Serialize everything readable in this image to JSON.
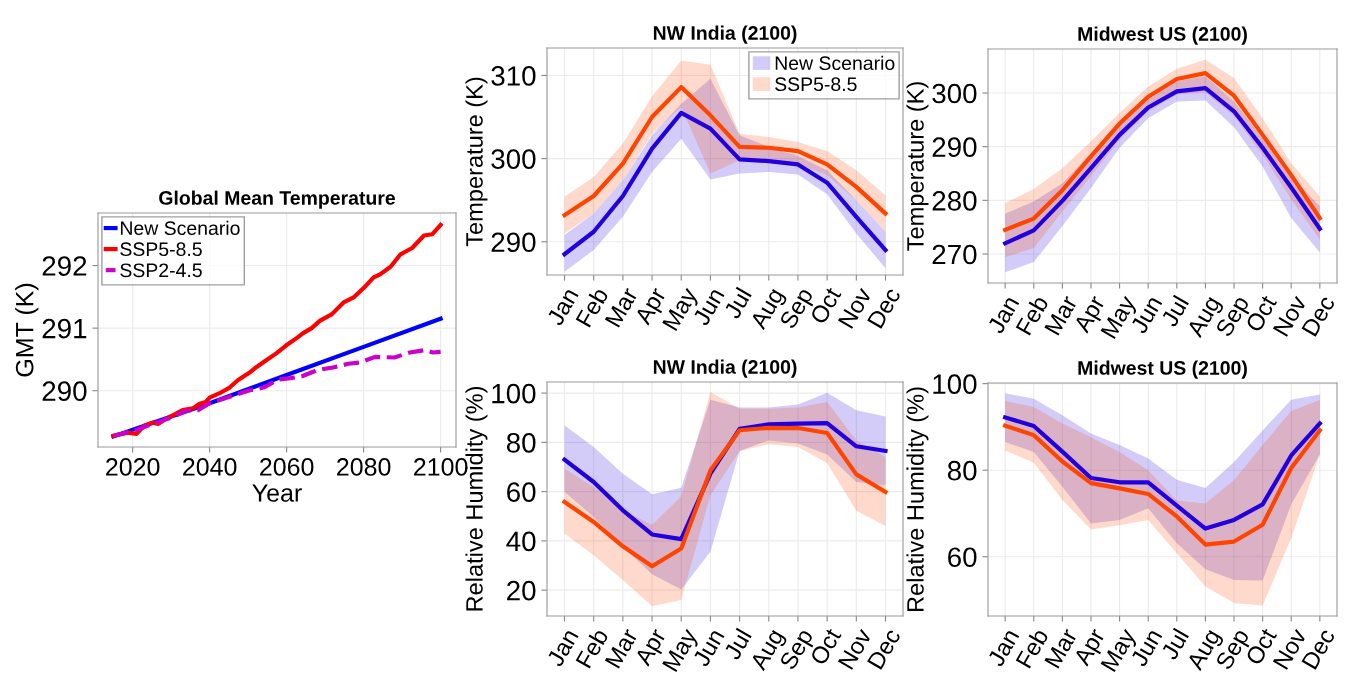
{
  "chart_data": [
    {
      "type": "line",
      "title": "Global Mean Temperature",
      "xlabel": "Year",
      "ylabel": "GMT (K)",
      "xlim": [
        2011,
        2104
      ],
      "ylim": [
        289.1,
        292.84
      ],
      "xticks": [
        2020,
        2040,
        2060,
        2080,
        2100
      ],
      "yticks": [
        290,
        291,
        292
      ],
      "grid": true,
      "legend": "top left",
      "series": [
        {
          "name": "New Scenario",
          "color": "#0000ff",
          "x": [
            2015,
            2040,
            2060,
            2080,
            2100
          ],
          "values": [
            289.27,
            289.8,
            290.25,
            290.7,
            291.15
          ]
        },
        {
          "name": "SSP5-8.5",
          "color": "#ff0000",
          "x": [
            2015,
            2018.7,
            2021,
            2023,
            2025.2,
            2026.7,
            2028.7,
            2033,
            2035.7,
            2037.4,
            2039,
            2040,
            2042.6,
            2045.2,
            2047.4,
            2050.4,
            2052.2,
            2054.8,
            2057.4,
            2060,
            2062.6,
            2064.3,
            2066.5,
            2068.7,
            2071.7,
            2074.8,
            2077.4,
            2080,
            2082.6,
            2084.3,
            2087,
            2089.6,
            2092.6,
            2095.7,
            2097.8,
            2100
          ],
          "values": [
            289.28,
            289.33,
            289.31,
            289.44,
            289.49,
            289.47,
            289.55,
            289.69,
            289.72,
            289.79,
            289.82,
            289.89,
            289.96,
            290.05,
            290.17,
            290.29,
            290.38,
            290.49,
            290.6,
            290.73,
            290.84,
            290.92,
            291.0,
            291.12,
            291.22,
            291.41,
            291.49,
            291.64,
            291.81,
            291.86,
            291.98,
            292.18,
            292.28,
            292.48,
            292.5,
            292.65
          ]
        },
        {
          "name": "SSP2-4.5",
          "color": "#cc00cc",
          "line_style": "dashed",
          "x": [
            2015,
            2020,
            2023,
            2028,
            2030,
            2034,
            2037,
            2040,
            2045,
            2050,
            2054,
            2058,
            2061,
            2064,
            2068,
            2072,
            2076,
            2079,
            2083,
            2088,
            2092,
            2096,
            2098,
            2100
          ],
          "values": [
            289.28,
            289.35,
            289.42,
            289.53,
            289.57,
            289.68,
            289.69,
            289.8,
            289.9,
            290.0,
            290.05,
            290.18,
            290.2,
            290.23,
            290.33,
            290.37,
            290.43,
            290.45,
            290.54,
            290.53,
            290.61,
            290.65,
            290.61,
            290.62
          ]
        }
      ]
    },
    {
      "type": "line",
      "title": "NW India (2100)",
      "ylabel": "Temperature (K)",
      "categories": [
        "Jan",
        "Feb",
        "Mar",
        "Apr",
        "May",
        "Jun",
        "Jul",
        "Aug",
        "Sep",
        "Oct",
        "Nov",
        "Dec"
      ],
      "ylim": [
        286,
        313.3
      ],
      "yticks": [
        290,
        300,
        310
      ],
      "grid": true,
      "legend": "top right",
      "series": [
        {
          "name": "New Scenario",
          "color": "#2200dd",
          "values": [
            288.5,
            291.2,
            295.5,
            301.2,
            305.5,
            303.6,
            299.9,
            299.7,
            299.3,
            297.1,
            293.0,
            289.0
          ],
          "lower": [
            286.4,
            289.0,
            293.0,
            298.4,
            302.4,
            297.5,
            298.2,
            298.4,
            298.1,
            295.7,
            291.0,
            286.8
          ],
          "upper": [
            290.8,
            293.4,
            297.4,
            302.8,
            306.6,
            309.6,
            302.8,
            301.4,
            300.3,
            298.6,
            295.0,
            291.2
          ]
        },
        {
          "name": "SSP5-8.5",
          "color": "#ff4400",
          "values": [
            293.2,
            295.5,
            299.4,
            305.0,
            308.6,
            305.2,
            301.4,
            301.3,
            300.9,
            299.3,
            296.6,
            293.4
          ],
          "lower": [
            291.0,
            293.4,
            297.4,
            303.0,
            306.2,
            298.2,
            299.8,
            299.8,
            299.4,
            298.0,
            295.0,
            291.2
          ],
          "upper": [
            295.4,
            297.8,
            301.8,
            307.5,
            311.8,
            311.3,
            303.0,
            302.6,
            302.0,
            300.9,
            298.6,
            295.6
          ]
        }
      ]
    },
    {
      "type": "line",
      "title": "Midwest US (2100)",
      "ylabel": "Temperature (K)",
      "categories": [
        "Jan",
        "Feb",
        "Mar",
        "Apr",
        "May",
        "Jun",
        "Jul",
        "Aug",
        "Sep",
        "Oct",
        "Nov",
        "Dec"
      ],
      "ylim": [
        264.6,
        308.2
      ],
      "yticks": [
        270,
        280,
        290,
        300
      ],
      "grid": true,
      "series": [
        {
          "color": "#2200dd",
          "values": [
            272.0,
            274.4,
            279.9,
            286.0,
            292.2,
            297.3,
            300.3,
            300.9,
            296.6,
            289.8,
            282.4,
            274.7
          ],
          "lower": [
            266.6,
            268.5,
            275.2,
            282.3,
            289.8,
            295.3,
            298.4,
            298.6,
            293.6,
            286.3,
            276.7,
            270.3
          ],
          "upper": [
            277.5,
            279.8,
            283.2,
            288.8,
            294.4,
            298.8,
            302.2,
            303.1,
            298.4,
            291.6,
            284.5,
            278.9
          ]
        },
        {
          "color": "#ff4400",
          "values": [
            274.5,
            276.6,
            281.9,
            288.2,
            294.3,
            299.3,
            302.6,
            303.7,
            299.5,
            292.2,
            284.7,
            276.7
          ],
          "lower": [
            269.4,
            271.1,
            277.9,
            284.5,
            291.3,
            296.6,
            299.7,
            300.1,
            295.7,
            288.5,
            280.2,
            272.7
          ],
          "upper": [
            279.5,
            282.1,
            286.0,
            291.0,
            296.3,
            301.2,
            304.5,
            306.2,
            302.8,
            295.3,
            286.9,
            280.7
          ]
        }
      ]
    },
    {
      "type": "line",
      "title": "NW India (2100)",
      "ylabel": "Relative Humidity (%)",
      "categories": [
        "Jan",
        "Feb",
        "Mar",
        "Apr",
        "May",
        "Jun",
        "Jul",
        "Aug",
        "Sep",
        "Oct",
        "Nov",
        "Dec"
      ],
      "ylim": [
        9.5,
        104.5
      ],
      "yticks": [
        20,
        40,
        60,
        80,
        100
      ],
      "grid": true,
      "series": [
        {
          "color": "#2200dd",
          "values": [
            73.0,
            63.9,
            52.4,
            42.6,
            40.7,
            67.3,
            85.5,
            87.3,
            87.6,
            87.8,
            78.4,
            76.5
          ],
          "lower": [
            59.9,
            49.7,
            37.6,
            26.5,
            20.3,
            35.6,
            76.5,
            80.8,
            79.5,
            75.1,
            63.9,
            62.6
          ],
          "upper": [
            86.9,
            78.1,
            67.3,
            58.9,
            61.6,
            97.3,
            94.1,
            94.1,
            95.4,
            100.1,
            93.0,
            90.5
          ]
        },
        {
          "color": "#ff4400",
          "values": [
            55.8,
            47.7,
            37.8,
            29.7,
            36.9,
            68.6,
            84.9,
            85.9,
            85.8,
            83.8,
            67.0,
            59.9
          ],
          "lower": [
            43.0,
            34.2,
            24.1,
            13.5,
            16.0,
            58.5,
            76.5,
            79.2,
            78.1,
            71.6,
            52.2,
            46.0
          ],
          "upper": [
            69.3,
            61.9,
            52.4,
            46.4,
            58.1,
            100.4,
            93.6,
            93.6,
            94.1,
            96.4,
            80.8,
            74.1
          ]
        }
      ]
    },
    {
      "type": "line",
      "title": "Midwest US (2100)",
      "ylabel": "Relative Humidity (%)",
      "categories": [
        "Jan",
        "Feb",
        "Mar",
        "Apr",
        "May",
        "Jun",
        "Jul",
        "Aug",
        "Sep",
        "Oct",
        "Nov",
        "Dec"
      ],
      "ylim": [
        46.3,
        100.15
      ],
      "yticks": [
        60,
        80,
        100
      ],
      "grid": true,
      "series": [
        {
          "color": "#2200dd",
          "values": [
            92.2,
            90.2,
            84.3,
            78.2,
            77.2,
            77.2,
            71.8,
            66.5,
            68.5,
            72.1,
            83.4,
            90.8
          ],
          "lower": [
            86.5,
            84.2,
            76.2,
            67.7,
            68.5,
            71.2,
            63.1,
            57.1,
            54.6,
            54.5,
            72.1,
            83.6
          ],
          "upper": [
            97.8,
            96.5,
            92.7,
            88.5,
            85.8,
            82.7,
            77.8,
            75.9,
            81.9,
            89.2,
            96.3,
            97.5
          ]
        },
        {
          "color": "#ff4400",
          "values": [
            90.3,
            88.1,
            82.0,
            77.0,
            75.8,
            74.5,
            69.3,
            62.8,
            63.5,
            67.4,
            80.5,
            89.2
          ],
          "lower": [
            84.6,
            81.7,
            73.1,
            66.3,
            67.3,
            68.5,
            60.8,
            53.1,
            49.3,
            48.7,
            64.3,
            83.6
          ],
          "upper": [
            96.0,
            94.6,
            90.8,
            87.6,
            84.2,
            80.0,
            73.0,
            72.3,
            77.7,
            85.8,
            93.7,
            96.2
          ]
        }
      ]
    }
  ]
}
